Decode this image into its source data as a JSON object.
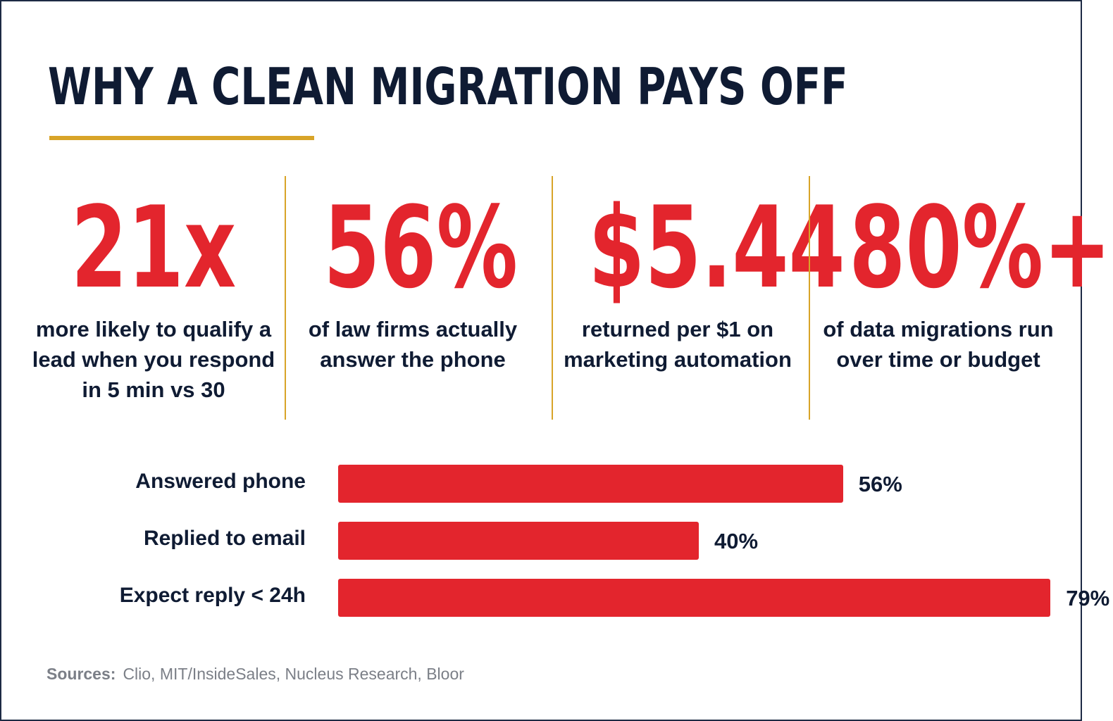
{
  "title": "WHY A CLEAN MIGRATION PAYS OFF",
  "colors": {
    "accent": "#e3252d",
    "navy": "#0f1b33",
    "gold": "#d8a428",
    "muted": "#7b7f87"
  },
  "stats": [
    {
      "value": "21x",
      "description": "more likely to qualify a lead when you respond in 5 min vs 30"
    },
    {
      "value": "56%",
      "description": "of law firms actually answer the phone"
    },
    {
      "value": "$5.44",
      "description": "returned per $1 on marketing automation"
    },
    {
      "value": "80%+",
      "description": "of data migrations run over time or budget"
    }
  ],
  "chart_data": {
    "type": "bar",
    "orientation": "horizontal",
    "categories": [
      "Answered phone",
      "Replied to email",
      "Expect reply < 24h"
    ],
    "values": [
      56,
      40,
      79
    ],
    "value_labels": [
      "56%",
      "40%",
      "79%"
    ],
    "unit": "%",
    "xlim": [
      0,
      100
    ],
    "grid": false
  },
  "sources": {
    "label": "Sources:",
    "text": "Clio, MIT/InsideSales, Nucleus Research, Bloor"
  }
}
